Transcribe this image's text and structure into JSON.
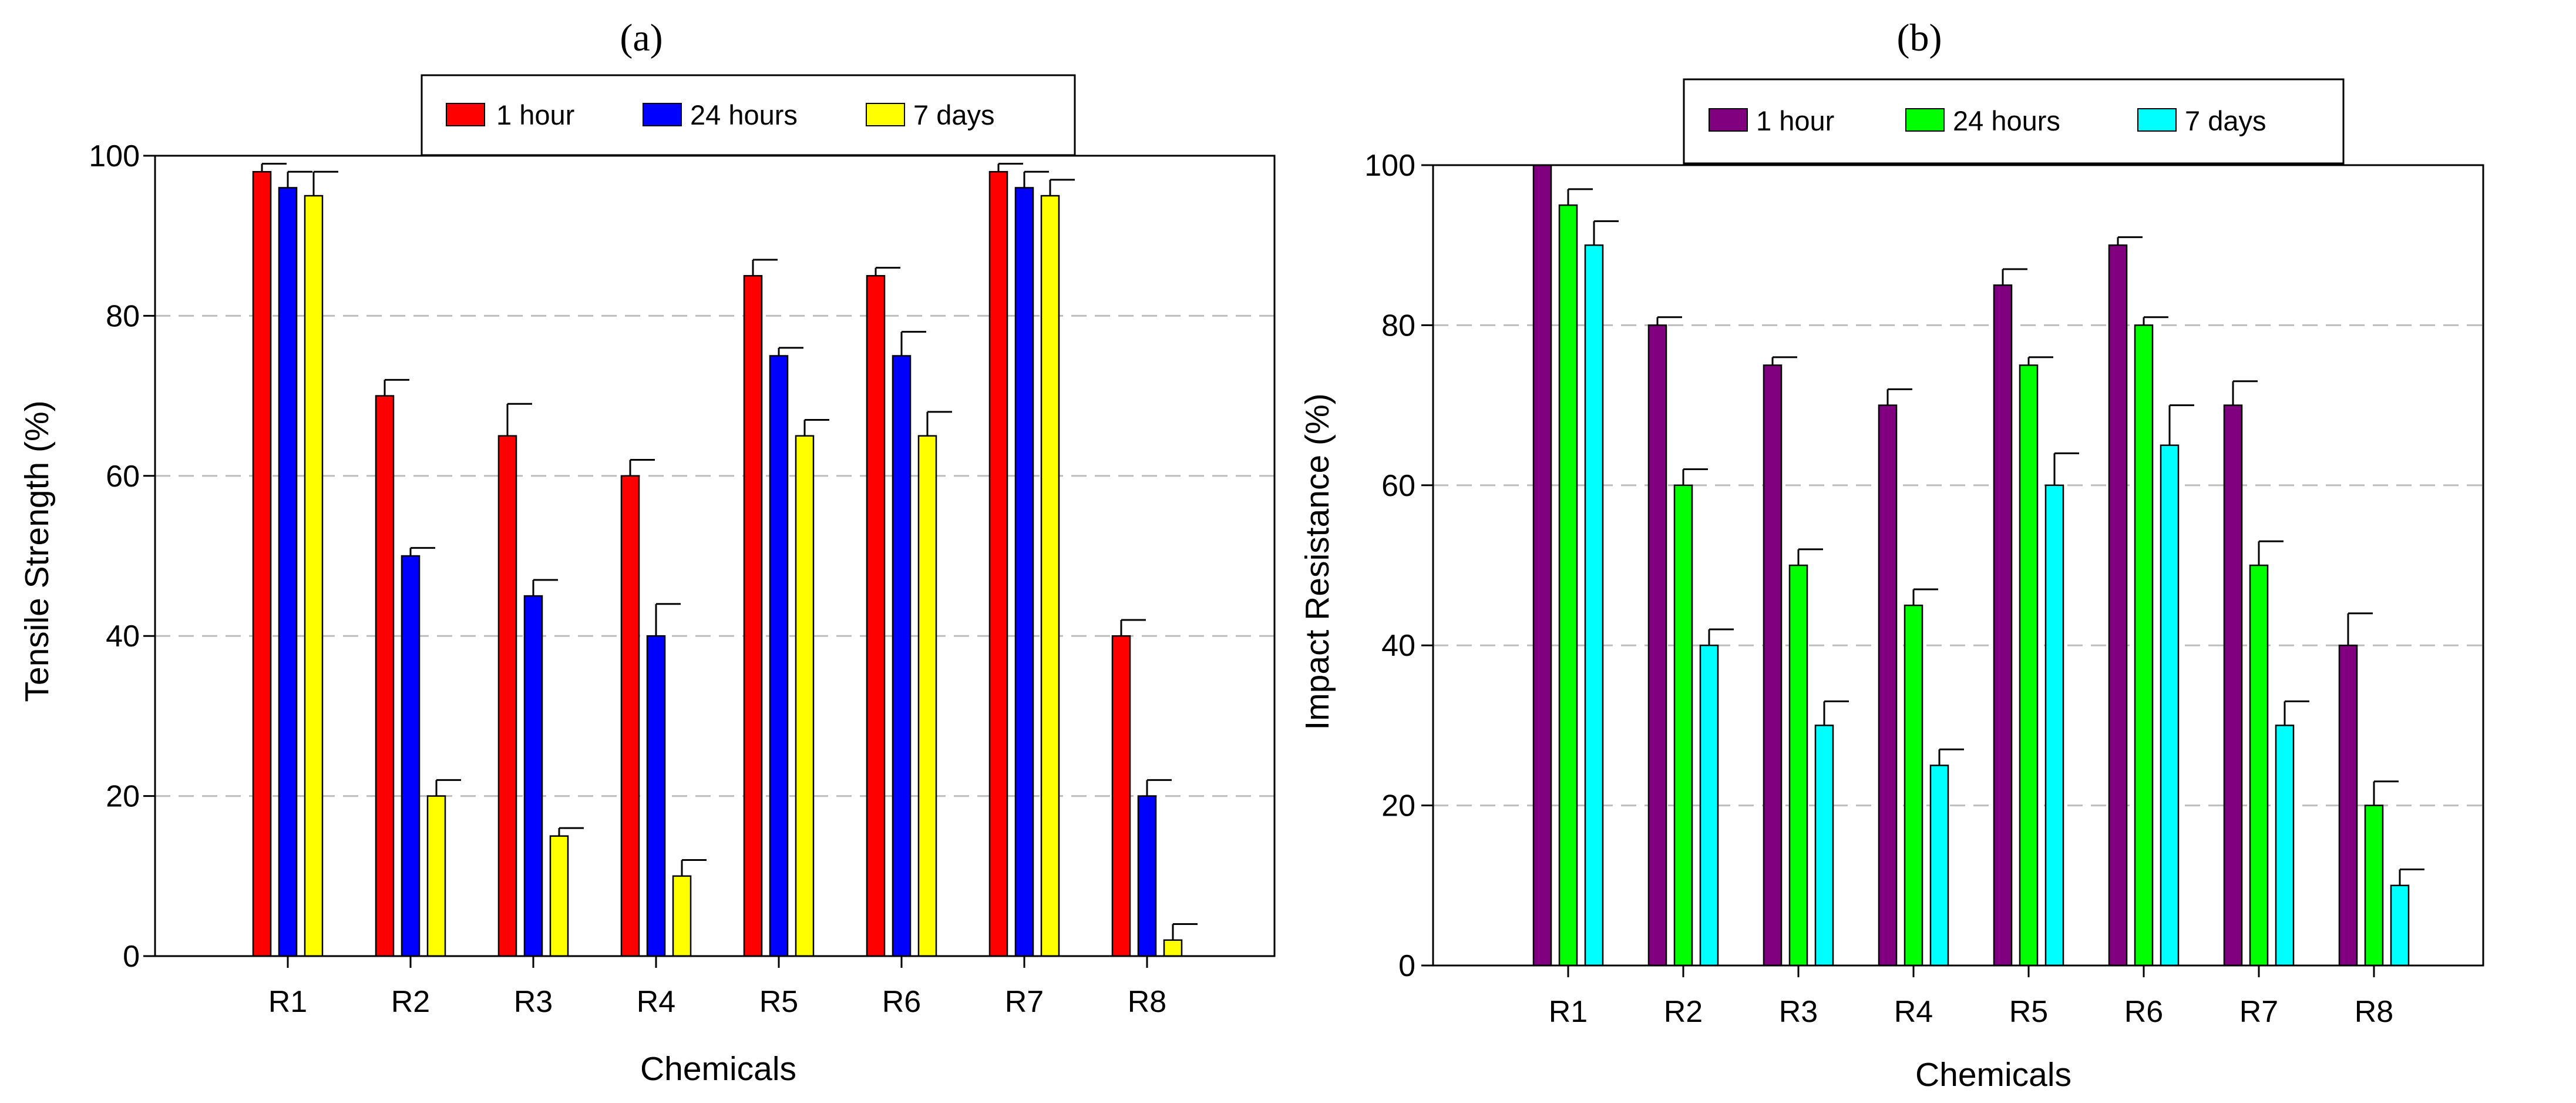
{
  "chart_data": [
    {
      "type": "bar",
      "panel_label": "(a)",
      "title": "",
      "xlabel": "Chemicals",
      "ylabel": "Tensile Strength (%)",
      "categories": [
        "R1",
        "R2",
        "R3",
        "R4",
        "R5",
        "R6",
        "R7",
        "R8"
      ],
      "ylim": [
        0,
        100
      ],
      "yticks": [
        0,
        20,
        40,
        60,
        80,
        100
      ],
      "gridlines": [
        20,
        40,
        60,
        80
      ],
      "grid": "dashed horizontal",
      "legend_position": "top-center",
      "series": [
        {
          "name": "1 hour",
          "color": "#ff0000",
          "values": [
            98,
            70,
            65,
            60,
            85,
            85,
            98,
            40
          ],
          "errors": [
            1,
            2,
            4,
            2,
            2,
            1,
            1,
            2
          ]
        },
        {
          "name": "24 hours",
          "color": "#0000ff",
          "values": [
            96,
            50,
            45,
            40,
            75,
            75,
            96,
            20
          ],
          "errors": [
            2,
            1,
            2,
            4,
            1,
            3,
            2,
            2
          ]
        },
        {
          "name": "7 days",
          "color": "#ffff00",
          "values": [
            95,
            20,
            15,
            10,
            65,
            65,
            95,
            2
          ],
          "errors": [
            3,
            2,
            1,
            2,
            2,
            3,
            2,
            2
          ]
        }
      ]
    },
    {
      "type": "bar",
      "panel_label": "(b)",
      "title": "",
      "xlabel": "Chemicals",
      "ylabel": "Impact Resistance (%)",
      "categories": [
        "R1",
        "R2",
        "R3",
        "R4",
        "R5",
        "R6",
        "R7",
        "R8"
      ],
      "ylim": [
        0,
        100
      ],
      "yticks": [
        0,
        20,
        40,
        60,
        80,
        100
      ],
      "gridlines": [
        20,
        40,
        60,
        80
      ],
      "grid": "dashed horizontal",
      "legend_position": "top-center",
      "series": [
        {
          "name": "1 hour",
          "color": "#800080",
          "values": [
            100,
            80,
            75,
            70,
            85,
            90,
            70,
            40
          ],
          "errors": [
            0,
            1,
            1,
            2,
            2,
            1,
            3,
            4
          ]
        },
        {
          "name": "24 hours",
          "color": "#00ff00",
          "values": [
            95,
            60,
            50,
            45,
            75,
            80,
            50,
            20
          ],
          "errors": [
            2,
            2,
            2,
            2,
            1,
            1,
            3,
            3
          ]
        },
        {
          "name": "7 days",
          "color": "#00ffff",
          "values": [
            90,
            40,
            30,
            25,
            60,
            65,
            30,
            10
          ],
          "errors": [
            3,
            2,
            3,
            2,
            4,
            5,
            3,
            2
          ]
        }
      ]
    }
  ]
}
